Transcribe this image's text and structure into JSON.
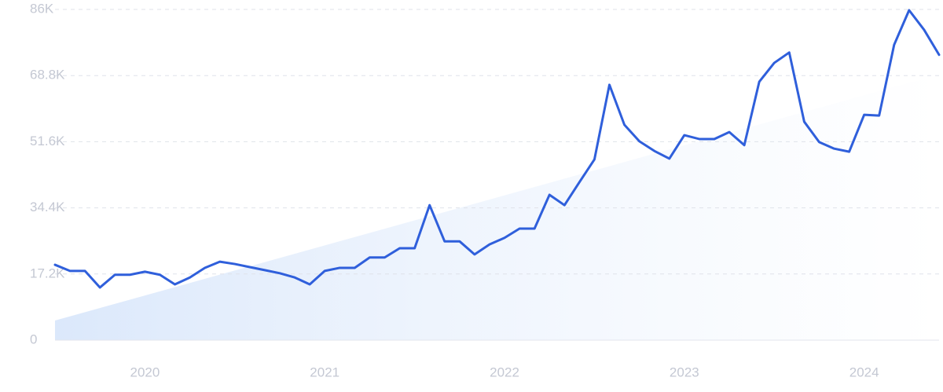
{
  "chart_data": {
    "type": "line",
    "categories": [
      null,
      null,
      null,
      null,
      null,
      null,
      "2020",
      null,
      null,
      null,
      null,
      null,
      null,
      null,
      null,
      null,
      null,
      null,
      "2021",
      null,
      null,
      null,
      null,
      null,
      null,
      null,
      null,
      null,
      null,
      null,
      "2022",
      null,
      null,
      null,
      null,
      null,
      null,
      null,
      null,
      null,
      null,
      null,
      "2023",
      null,
      null,
      null,
      null,
      null,
      null,
      null,
      null,
      null,
      null,
      null,
      "2024",
      null,
      null,
      null,
      null,
      null
    ],
    "series": [
      {
        "color": "#2f5fdb",
        "values": [
          19600,
          18000,
          18000,
          13700,
          17000,
          17000,
          17800,
          17000,
          14500,
          16300,
          18800,
          20400,
          19800,
          19000,
          18200,
          17400,
          16300,
          14500,
          18000,
          18800,
          18800,
          21500,
          21500,
          23900,
          23900,
          35100,
          25700,
          25700,
          22300,
          24900,
          26600,
          29000,
          29000,
          37800,
          35100,
          41100,
          47000,
          66400,
          56000,
          51700,
          49200,
          47200,
          53300,
          52300,
          52300,
          54100,
          50700,
          67200,
          72100,
          74800,
          56800,
          51500,
          49800,
          49000,
          58600,
          58400,
          76800,
          85800,
          80700,
          74200
        ]
      }
    ],
    "trend": {
      "values": [
        5100,
        69100
      ],
      "color": "#dbe8fb"
    },
    "ylim": [
      0,
      86000
    ],
    "yticks": [
      0,
      {
        "value": 17200,
        "label": "17.2K"
      },
      {
        "value": 34400,
        "label": "34.4K"
      },
      {
        "value": 51600,
        "label": "51.6K"
      },
      {
        "value": 68800,
        "label": "68.8K"
      },
      {
        "value": 86000,
        "label": "86K"
      }
    ],
    "grid": true
  }
}
